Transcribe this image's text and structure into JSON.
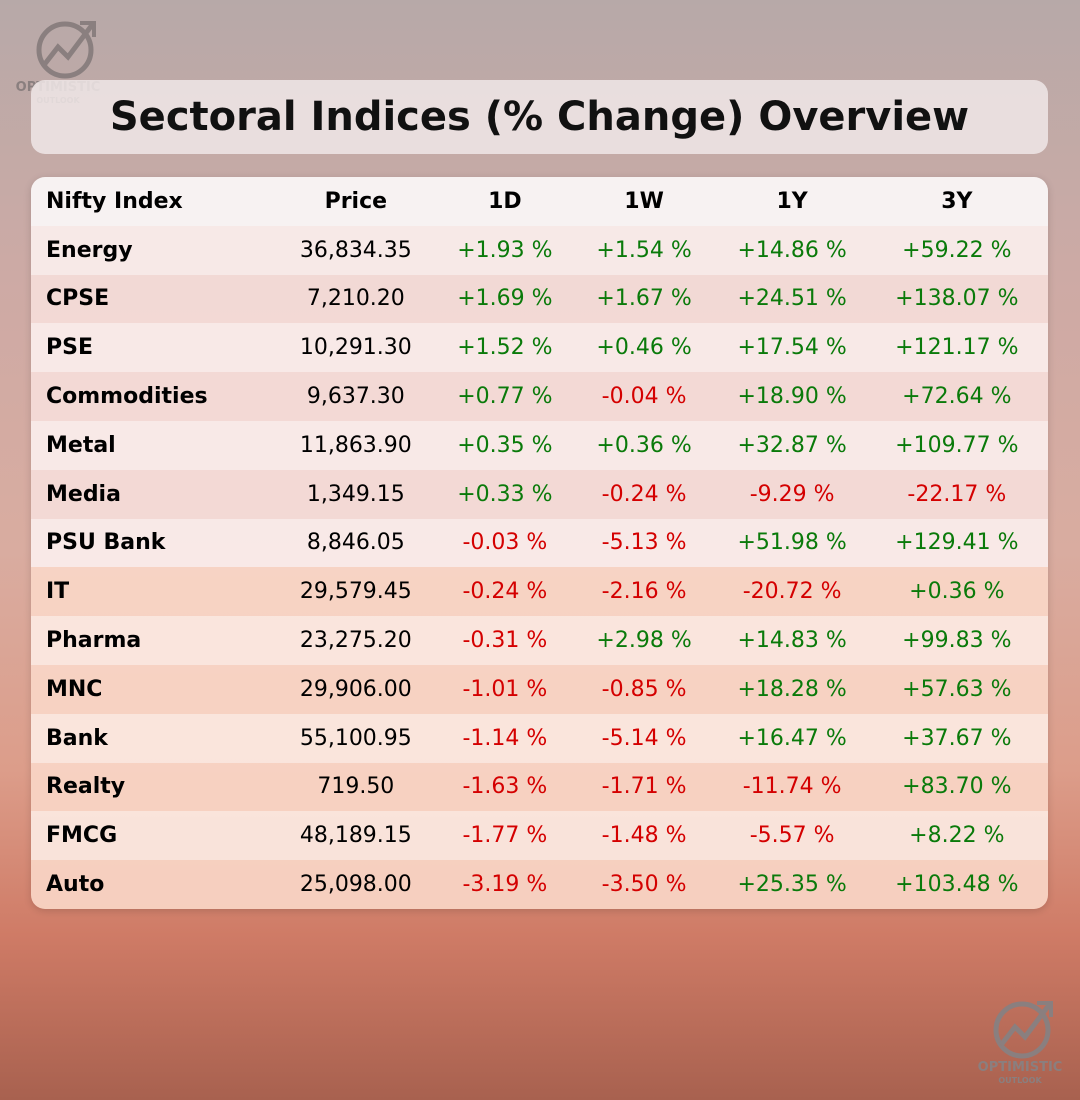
{
  "logo": {
    "line1": "OPTIMISTIC",
    "line2": "OUTLOOK"
  },
  "header": {
    "title": "Sectoral Indices (% Change) Overview"
  },
  "table": {
    "columns": [
      "Nifty Index",
      "Price",
      "1D",
      "1W",
      "1Y",
      "3Y"
    ],
    "rows": [
      [
        "Energy",
        "36,834.35",
        "+1.93 %",
        "+1.54 %",
        "+14.86 %",
        "+59.22 %"
      ],
      [
        "CPSE",
        "7,210.20",
        "+1.69 %",
        "+1.67 %",
        "+24.51 %",
        "+138.07 %"
      ],
      [
        "PSE",
        "10,291.30",
        "+1.52 %",
        "+0.46 %",
        "+17.54 %",
        "+121.17 %"
      ],
      [
        "Commodities",
        "9,637.30",
        "+0.77 %",
        "-0.04 %",
        "+18.90 %",
        "+72.64 %"
      ],
      [
        "Metal",
        "11,863.90",
        "+0.35 %",
        "+0.36 %",
        "+32.87 %",
        "+109.77 %"
      ],
      [
        "Media",
        "1,349.15",
        "+0.33 %",
        "-0.24 %",
        "-9.29 %",
        "-22.17 %"
      ],
      [
        "PSU Bank",
        "8,846.05",
        "-0.03 %",
        "-5.13 %",
        "+51.98 %",
        "+129.41 %"
      ],
      [
        "IT",
        "29,579.45",
        "-0.24 %",
        "-2.16 %",
        "-20.72 %",
        "+0.36 %"
      ],
      [
        "Pharma",
        "23,275.20",
        "-0.31 %",
        "+2.98 %",
        "+14.83 %",
        "+99.83 %"
      ],
      [
        "MNC",
        "29,906.00",
        "-1.01 %",
        "-0.85 %",
        "+18.28 %",
        "+57.63 %"
      ],
      [
        "Bank",
        "55,100.95",
        "-1.14 %",
        "-5.14 %",
        "+16.47 %",
        "+37.67 %"
      ],
      [
        "Realty",
        "719.50",
        "-1.63 %",
        "-1.71 %",
        "-11.74 %",
        "+83.70 %"
      ],
      [
        "FMCG",
        "48,189.15",
        "-1.77 %",
        "-1.48 %",
        "-5.57 %",
        "+8.22 %"
      ],
      [
        "Auto",
        "25,098.00",
        "-3.19 %",
        "-3.50 %",
        "+25.35 %",
        "+103.48 %"
      ]
    ]
  }
}
